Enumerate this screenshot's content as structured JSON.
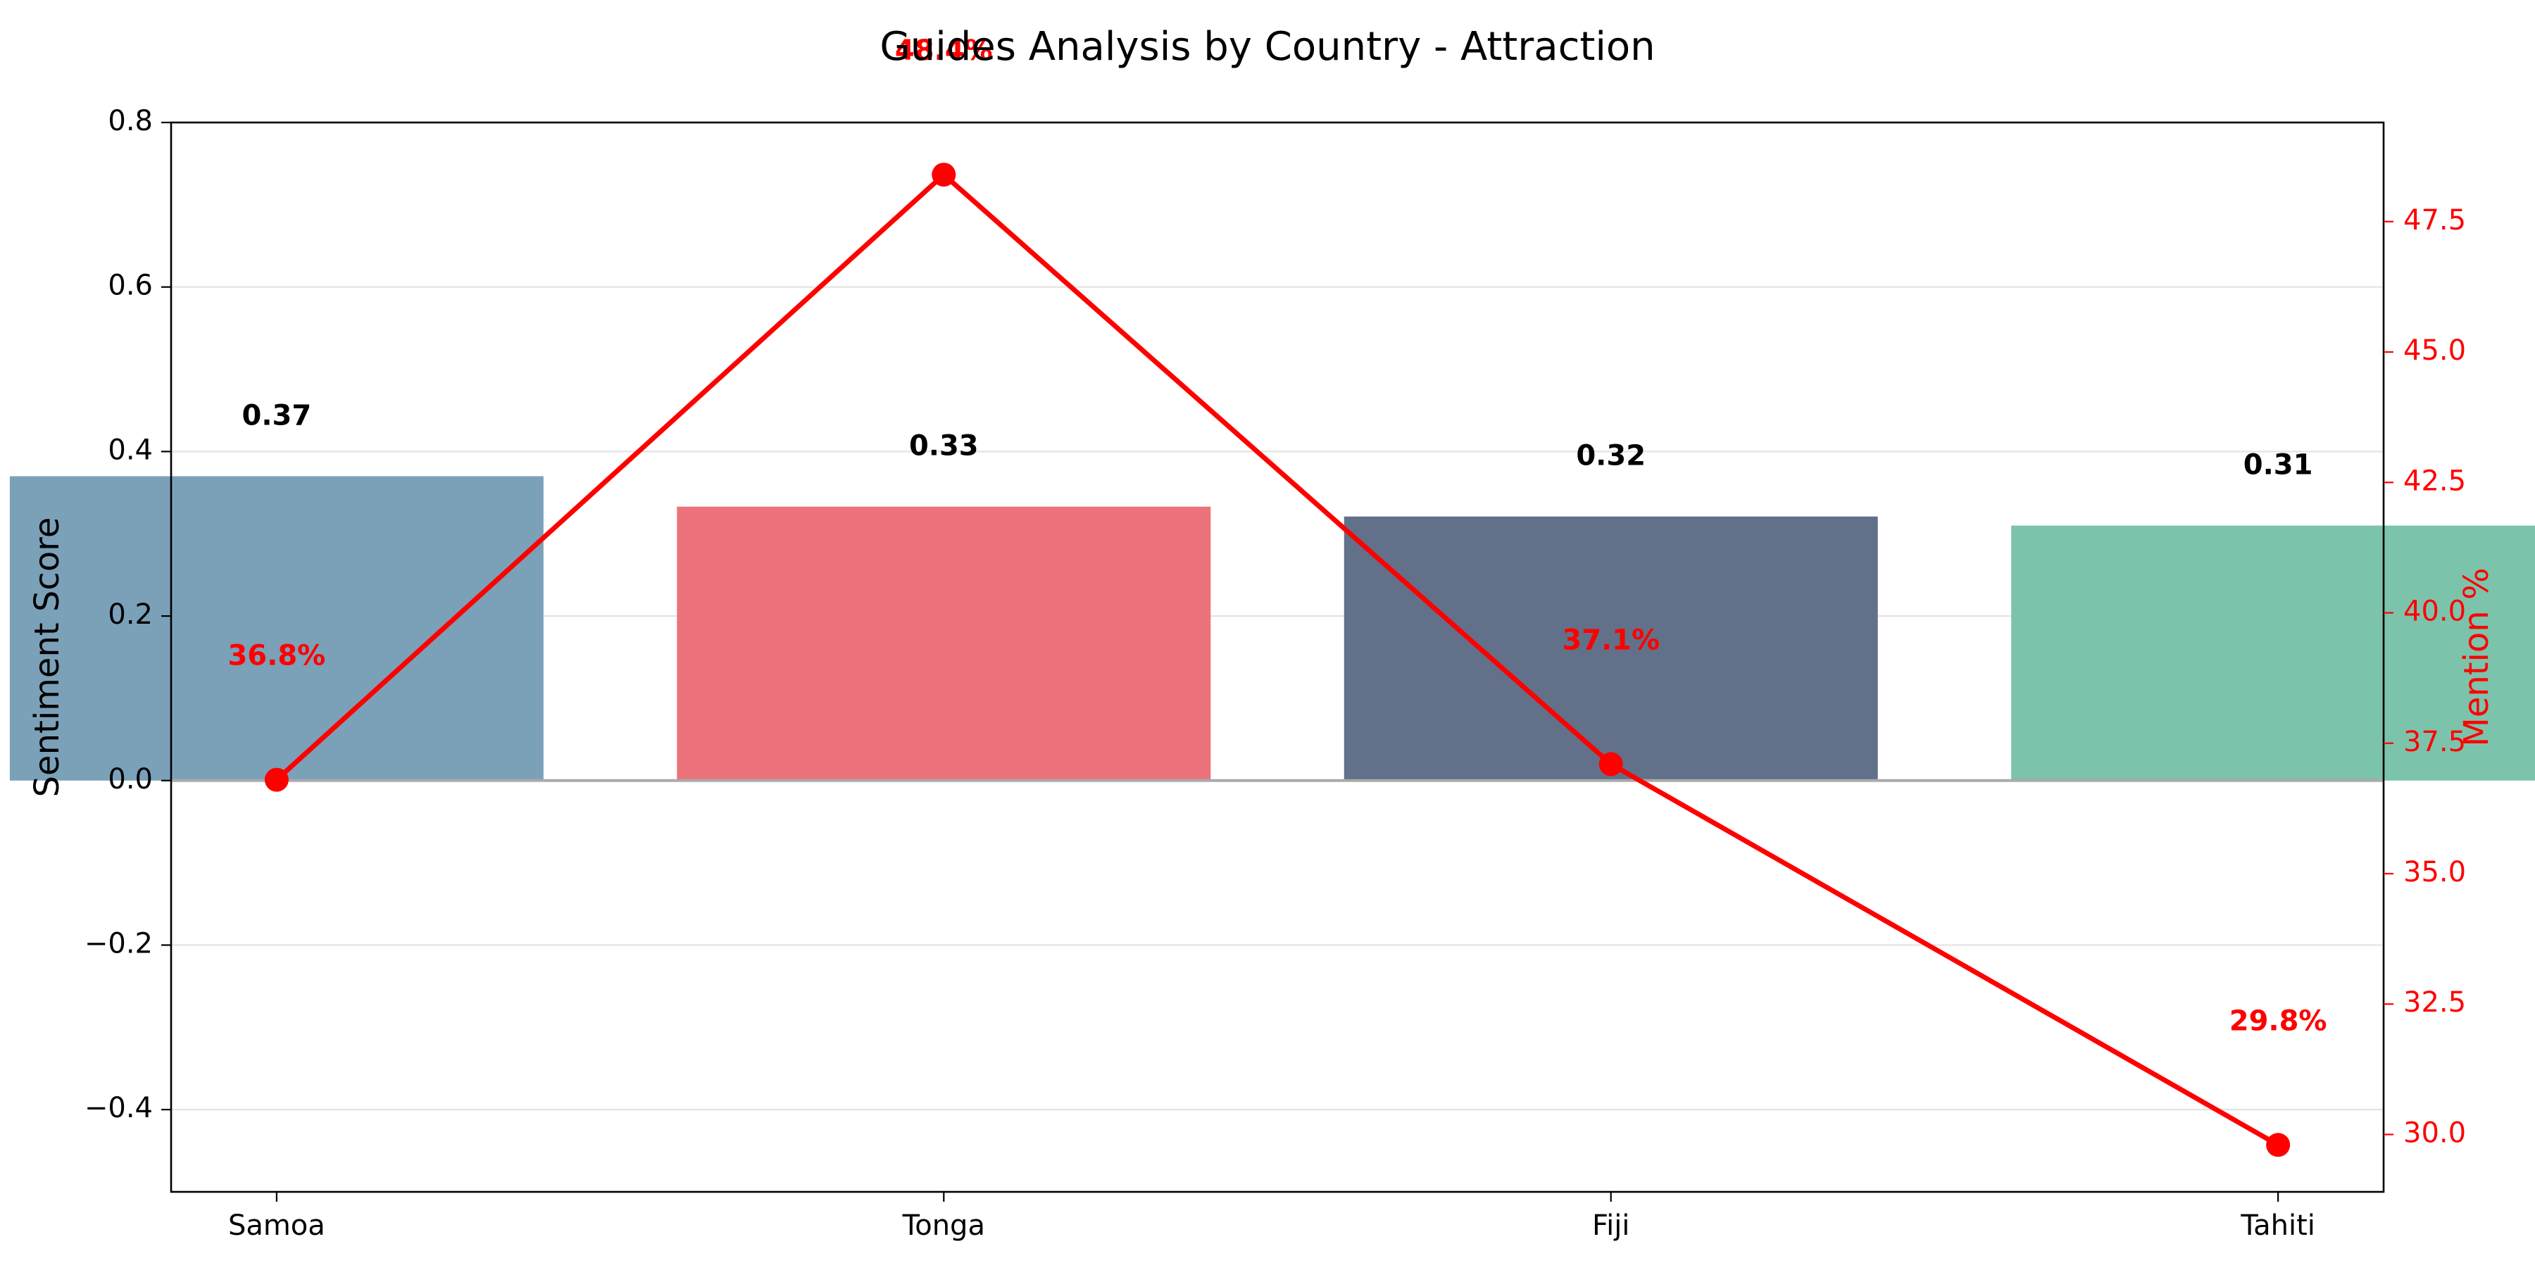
{
  "chart_data": {
    "type": "bar",
    "title": "Guides Analysis by Country - Attraction",
    "categories": [
      "Samoa",
      "Tonga",
      "Fiji",
      "Tahiti"
    ],
    "bar_values": [
      0.37,
      0.333,
      0.321,
      0.31
    ],
    "bar_labels": [
      "0.37",
      "0.33",
      "0.32",
      "0.31"
    ],
    "bar_colors": [
      "#7ba1b9",
      "#ec737c",
      "#627189",
      "#7cc3ab"
    ],
    "line_values": [
      36.8,
      48.4,
      37.1,
      29.8
    ],
    "line_labels": [
      "36.8%",
      "48.4%",
      "37.1%",
      "29.8%"
    ],
    "line_color": "#ff0000",
    "ylabel": "Sentiment Score",
    "ylabel_right": "Mention %",
    "ylim": [
      -0.5,
      0.8
    ],
    "ylim_right": [
      28.9,
      49.4
    ],
    "yticks": [
      0.8,
      0.6,
      0.4,
      0.2,
      0.0,
      -0.2,
      -0.4
    ],
    "ytick_labels": [
      "0.8",
      "0.6",
      "0.4",
      "0.2",
      "0.0",
      "−0.2",
      "−0.4"
    ],
    "yticks_right": [
      47.5,
      45.0,
      42.5,
      40.0,
      37.5,
      35.0,
      32.5,
      30.0
    ],
    "ytick_labels_right": [
      "47.5",
      "45.0",
      "42.5",
      "40.0",
      "37.5",
      "35.0",
      "32.5",
      "30.0"
    ],
    "grid": true,
    "zero_line": true,
    "line_marker": "circle"
  }
}
